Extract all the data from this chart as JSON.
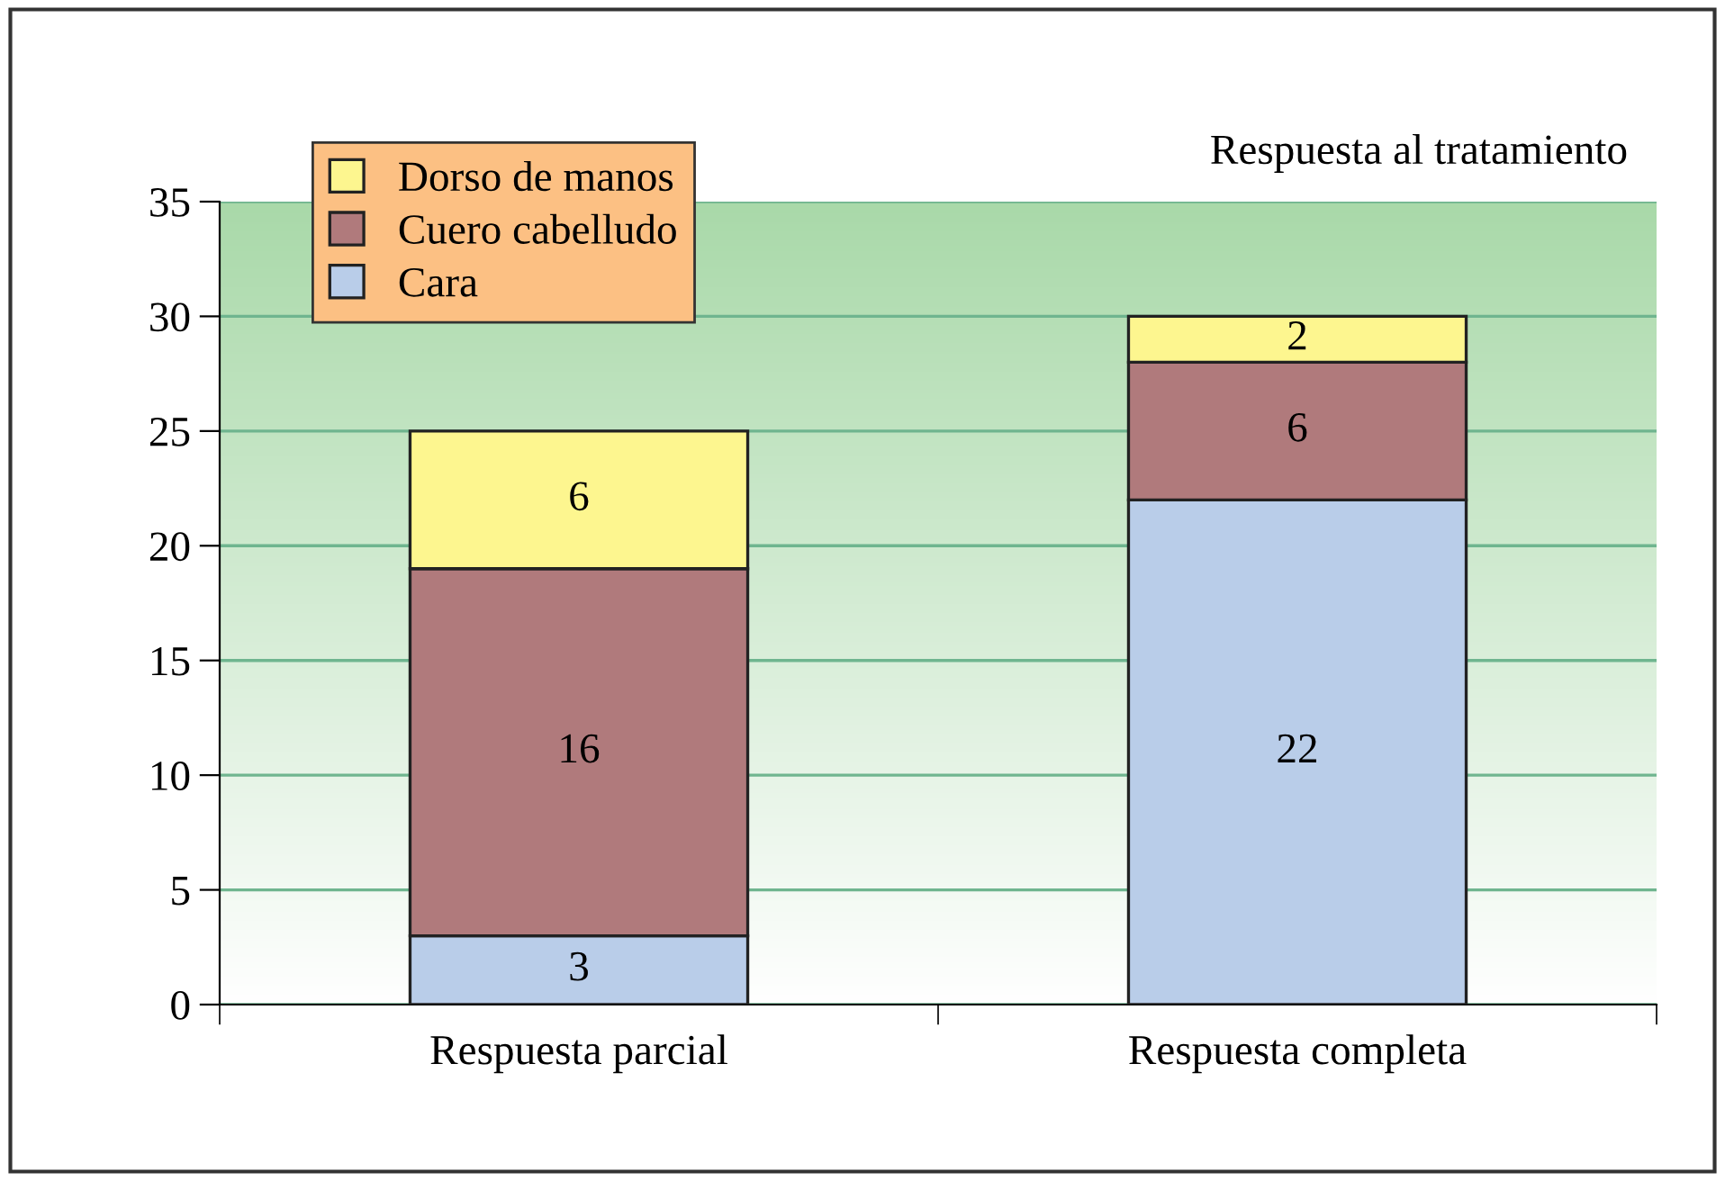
{
  "chart_data": {
    "type": "bar",
    "title": "Respuesta al tratamiento",
    "categories": [
      "Respuesta parcial",
      "Respuesta completa"
    ],
    "stacked": true,
    "series": [
      {
        "name": "Cara",
        "color": "#b9cde9",
        "values": [
          3,
          22
        ]
      },
      {
        "name": "Cuero cabelludo",
        "color": "#b07a7c",
        "values": [
          16,
          6
        ]
      },
      {
        "name": "Dorso de manos",
        "color": "#fdf68f",
        "values": [
          6,
          2
        ]
      }
    ],
    "ylim": [
      0,
      35
    ],
    "yticks": [
      0,
      5,
      10,
      15,
      20,
      25,
      30,
      35
    ],
    "grid": "y",
    "legend": "top left",
    "data_labels": true
  }
}
